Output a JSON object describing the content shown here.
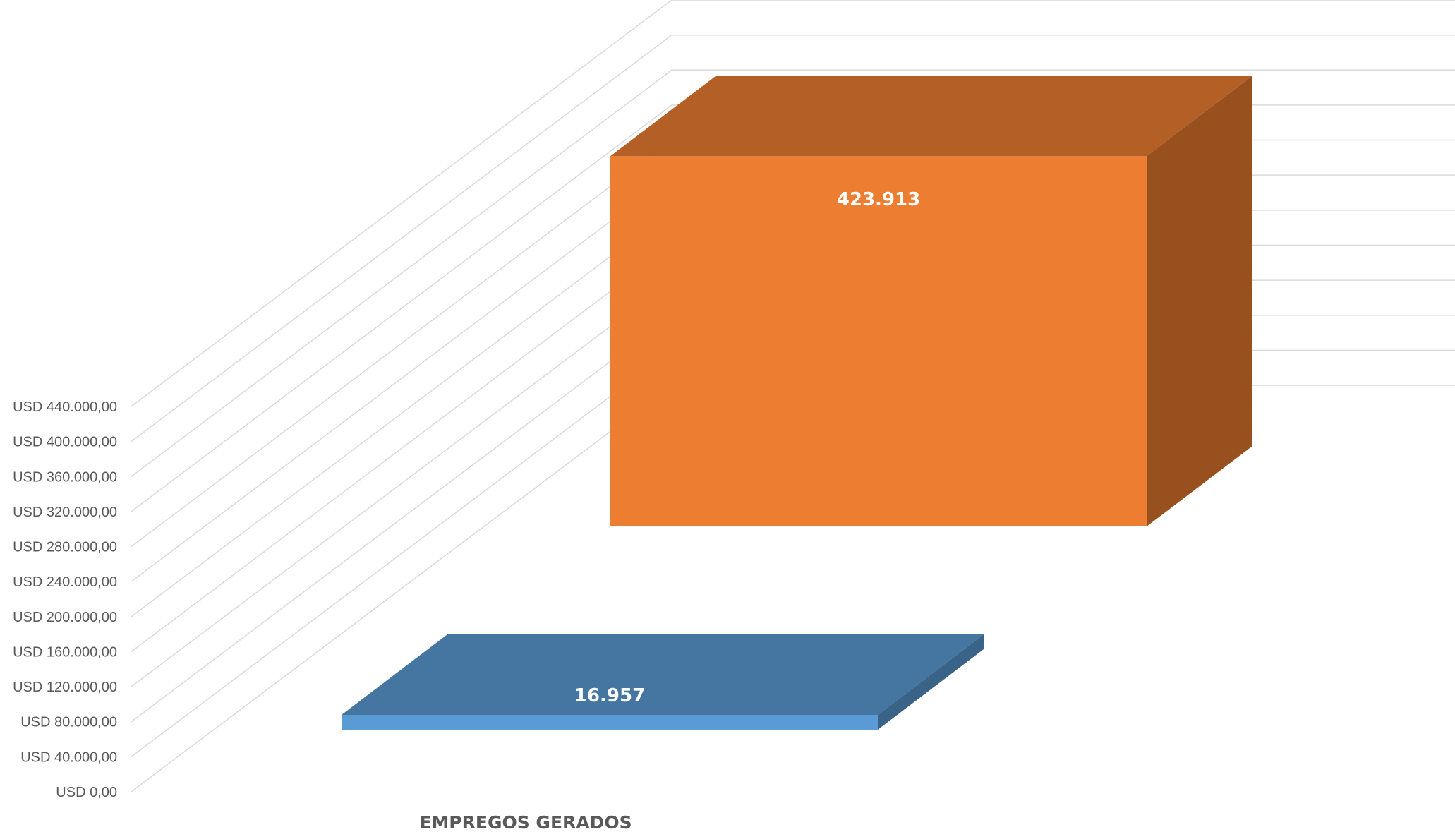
{
  "chart_data": {
    "type": "bar",
    "categories": [
      "EMPREGOS GERADOS"
    ],
    "series": [
      {
        "values": [
          16957
        ],
        "label": "16.957",
        "color": "#5B9BD5"
      },
      {
        "values": [
          423913
        ],
        "label": "423.913",
        "color": "#ED7D31"
      }
    ],
    "y_ticks": [
      "USD 0,00",
      "USD 40.000,00",
      "USD 80.000,00",
      "USD 120.000,00",
      "USD 160.000,00",
      "USD 200.000,00",
      "USD 240.000,00",
      "USD 280.000,00",
      "USD 320.000,00",
      "USD 360.000,00",
      "USD 400.000,00",
      "USD 440.000,00"
    ],
    "ylim": [
      0,
      440000
    ],
    "grid": true,
    "legend": "none",
    "style": "3d-column"
  }
}
